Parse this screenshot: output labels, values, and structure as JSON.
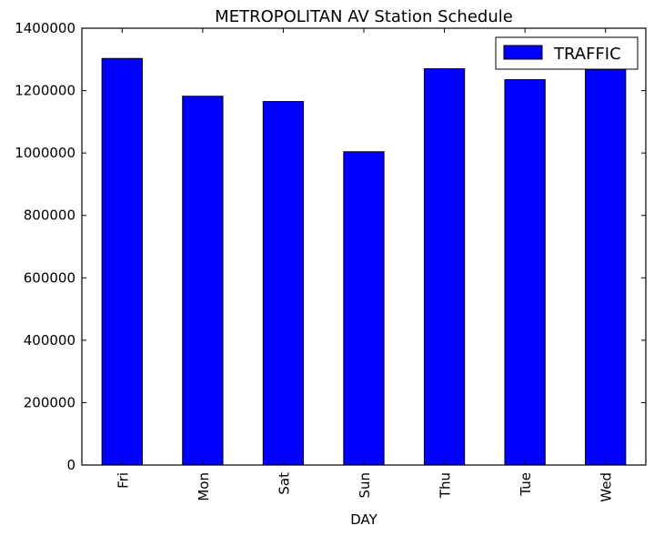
{
  "chart_data": {
    "type": "bar",
    "title": "METROPOLITAN AV Station Schedule",
    "xlabel": "DAY",
    "ylabel": "",
    "categories": [
      "Fri",
      "Mon",
      "Sat",
      "Sun",
      "Thu",
      "Tue",
      "Wed"
    ],
    "series": [
      {
        "name": "TRAFFIC",
        "values": [
          1303000,
          1182000,
          1165000,
          1004000,
          1270000,
          1235000,
          1268000
        ],
        "color": "#0000ff"
      }
    ],
    "ylim": [
      0,
      1400000
    ],
    "yticks": [
      0,
      200000,
      400000,
      600000,
      800000,
      1000000,
      1200000,
      1400000
    ],
    "ytick_labels": [
      "0",
      "200000",
      "400000",
      "600000",
      "800000",
      "1000000",
      "1200000",
      "1400000"
    ],
    "legend_position": "top-right",
    "grid": false
  }
}
